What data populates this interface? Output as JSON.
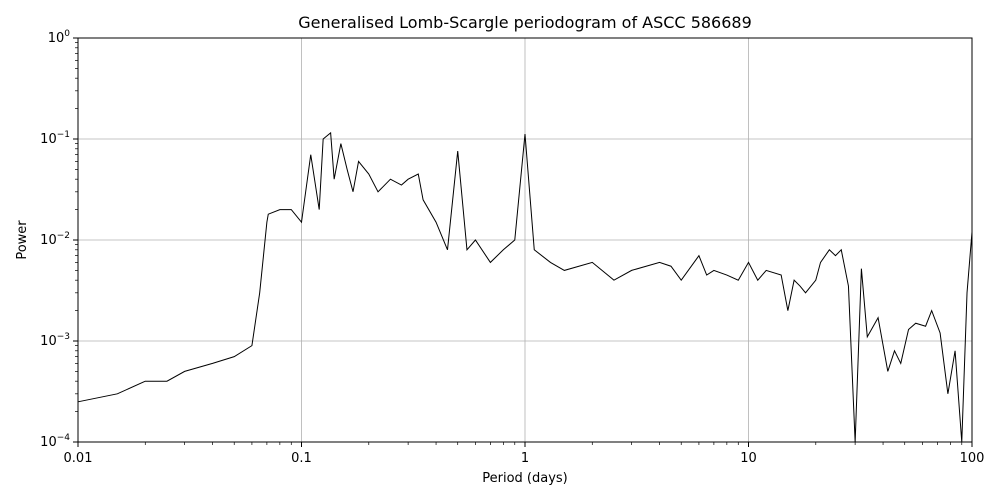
{
  "chart_data": {
    "type": "line",
    "title": "Generalised Lomb-Scargle periodogram of ASCC 586689",
    "xlabel": "Period (days)",
    "ylabel": "Power",
    "xscale": "log",
    "yscale": "log",
    "xlim": [
      0.01,
      100
    ],
    "ylim": [
      0.0001,
      1
    ],
    "grid": true,
    "x_ticks": [
      {
        "value": 0.01,
        "label": "0.01"
      },
      {
        "value": 0.1,
        "label": "0.1"
      },
      {
        "value": 1,
        "label": "1"
      },
      {
        "value": 10,
        "label": "10"
      },
      {
        "value": 100,
        "label": "100"
      }
    ],
    "y_ticks": [
      {
        "value": 0.0001,
        "base": "10",
        "exp": "−4"
      },
      {
        "value": 0.001,
        "base": "10",
        "exp": "−3"
      },
      {
        "value": 0.01,
        "base": "10",
        "exp": "−2"
      },
      {
        "value": 0.1,
        "base": "10",
        "exp": "−1"
      },
      {
        "value": 1,
        "base": "10",
        "exp": "0"
      }
    ],
    "series": [
      {
        "color": "#000000",
        "x": [
          0.01,
          0.015,
          0.02,
          0.025,
          0.03,
          0.04,
          0.05,
          0.06,
          0.065,
          0.07,
          0.071,
          0.08,
          0.09,
          0.1,
          0.11,
          0.12,
          0.125,
          0.135,
          0.14,
          0.15,
          0.16,
          0.17,
          0.18,
          0.2,
          0.22,
          0.25,
          0.28,
          0.3,
          0.333,
          0.35,
          0.4,
          0.45,
          0.5,
          0.55,
          0.6,
          0.7,
          0.8,
          0.9,
          1.0,
          1.1,
          1.3,
          1.5,
          2.0,
          2.5,
          3.0,
          4.0,
          4.5,
          5.0,
          6.0,
          6.5,
          7.0,
          8.0,
          9.0,
          10.0,
          11.0,
          12.0,
          14.0,
          15.0,
          16.0,
          17.0,
          18.0,
          20.0,
          21.0,
          23.0,
          24.5,
          26.0,
          28.0,
          30.0,
          32.0,
          34.0,
          38.0,
          42.0,
          45.0,
          48.0,
          52.0,
          56.0,
          62.0,
          66.0,
          72.0,
          78.0,
          84.0,
          90.0,
          95.0,
          100.0
        ],
        "y": [
          0.00025,
          0.0003,
          0.0004,
          0.0004,
          0.0005,
          0.0006,
          0.0007,
          0.0009,
          0.003,
          0.015,
          0.018,
          0.02,
          0.02,
          0.015,
          0.07,
          0.02,
          0.1,
          0.115,
          0.04,
          0.09,
          0.05,
          0.03,
          0.06,
          0.045,
          0.03,
          0.04,
          0.035,
          0.04,
          0.045,
          0.025,
          0.015,
          0.008,
          0.076,
          0.008,
          0.01,
          0.006,
          0.008,
          0.01,
          0.112,
          0.008,
          0.006,
          0.005,
          0.006,
          0.004,
          0.005,
          0.006,
          0.0055,
          0.004,
          0.007,
          0.0045,
          0.005,
          0.0045,
          0.004,
          0.006,
          0.004,
          0.005,
          0.0045,
          0.002,
          0.004,
          0.0035,
          0.003,
          0.004,
          0.006,
          0.008,
          0.007,
          0.008,
          0.0035,
          0.0001,
          0.0052,
          0.0011,
          0.0017,
          0.0005,
          0.0008,
          0.0006,
          0.0013,
          0.0015,
          0.0014,
          0.002,
          0.0012,
          0.0003,
          0.0008,
          0.0001,
          0.003,
          0.012
        ]
      }
    ]
  }
}
